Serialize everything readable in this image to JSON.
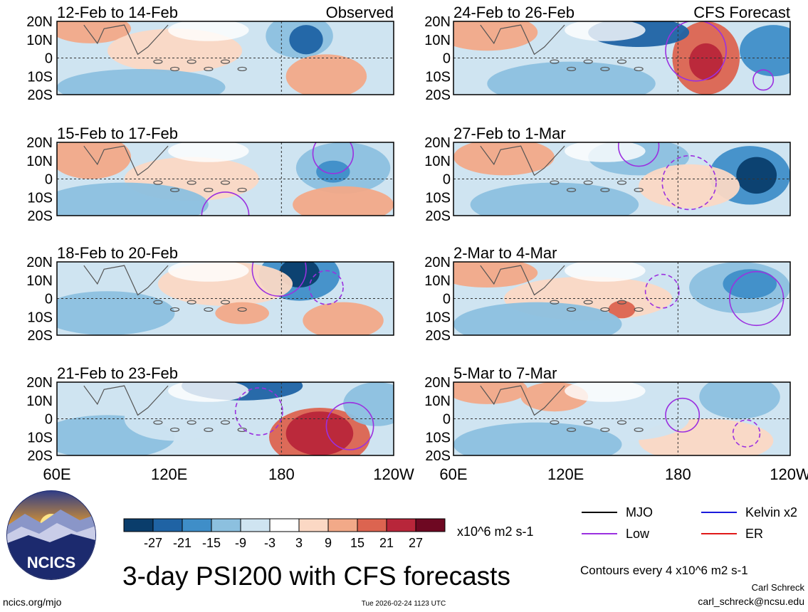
{
  "chart_data": {
    "type": "heatmap",
    "title": "3-day PSI200 with CFS forecasts",
    "units": "x10^6 m2 s-1",
    "observed_label": "Observed",
    "forecast_label": "CFS Forecast",
    "lat_ticks": [
      "20N",
      "10N",
      "0",
      "10S",
      "20S"
    ],
    "lon_ticks": [
      "60E",
      "120E",
      "180",
      "120W"
    ],
    "colorbar": {
      "colors": [
        "#0a3d6b",
        "#1f63a4",
        "#3f8ec8",
        "#8cc0df",
        "#cfe4f1",
        "#ffffff",
        "#fbd8c4",
        "#f2a988",
        "#dc6450",
        "#b8263a",
        "#6e0822"
      ],
      "labels": [
        "-27",
        "-21",
        "-15",
        "-9",
        "-3",
        "3",
        "9",
        "15",
        "21",
        "27"
      ]
    },
    "panels": [
      {
        "label": "12-Feb to 14-Feb",
        "column": "observed"
      },
      {
        "label": "15-Feb to 17-Feb",
        "column": "observed"
      },
      {
        "label": "18-Feb to 20-Feb",
        "column": "observed"
      },
      {
        "label": "21-Feb to 23-Feb",
        "column": "observed"
      },
      {
        "label": "24-Feb to 26-Feb",
        "column": "forecast"
      },
      {
        "label": "27-Feb to 1-Mar",
        "column": "forecast"
      },
      {
        "label": "2-Mar to 4-Mar",
        "column": "forecast"
      },
      {
        "label": "5-Mar to 7-Mar",
        "column": "forecast"
      }
    ],
    "legend": [
      {
        "name": "MJO",
        "color": "#000000"
      },
      {
        "name": "Kelvin x2",
        "color": "#1a1adc"
      },
      {
        "name": "Low",
        "color": "#9b30e0"
      },
      {
        "name": "ER",
        "color": "#e01818"
      }
    ],
    "contour_note": "Contours every 4 x10^6 m2 s-1"
  },
  "footer": {
    "logo_text": "NCICS",
    "website": "ncics.org/mjo",
    "timestamp": "Tue 2026-02-24 1123 UTC",
    "author": "Carl Schreck",
    "email": "carl_schreck@ncsu.edu"
  }
}
